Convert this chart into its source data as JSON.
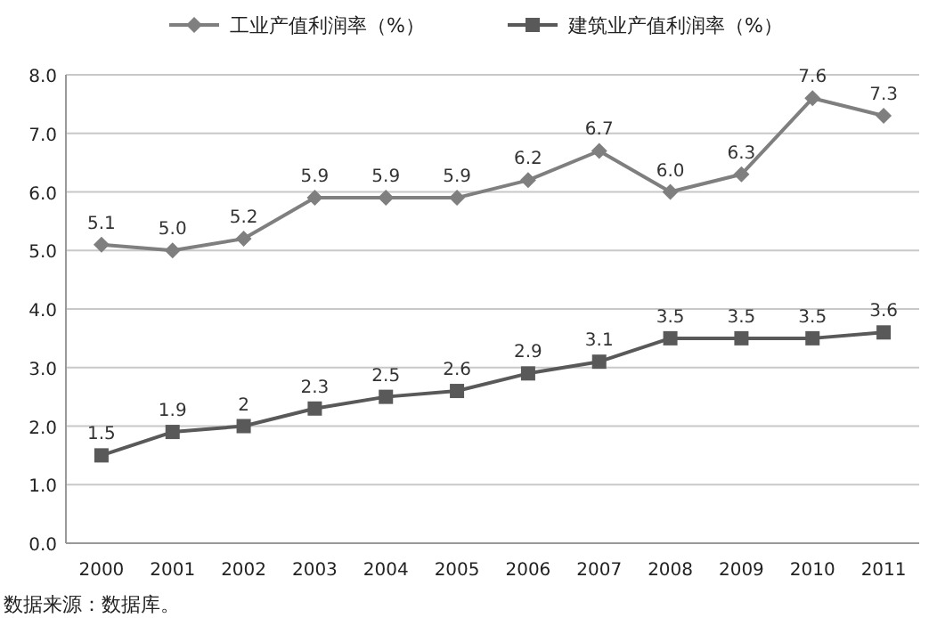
{
  "chart_data": {
    "type": "line",
    "categories": [
      "2000",
      "2001",
      "2002",
      "2003",
      "2004",
      "2005",
      "2006",
      "2007",
      "2008",
      "2009",
      "2010",
      "2011"
    ],
    "series": [
      {
        "name": "工业产值利润率（%）",
        "color": "#7f7f7f",
        "marker": "diamond",
        "values": [
          5.1,
          5.0,
          5.2,
          5.9,
          5.9,
          5.9,
          6.2,
          6.7,
          6.0,
          6.3,
          7.6,
          7.3
        ],
        "value_labels": [
          "5.1",
          "5.0",
          "5.2",
          "5.9",
          "5.9",
          "5.9",
          "6.2",
          "6.7",
          "6.0",
          "6.3",
          "7.6",
          "7.3"
        ]
      },
      {
        "name": "建筑业产值利润率（%）",
        "color": "#595959",
        "marker": "square",
        "values": [
          1.5,
          1.9,
          2,
          2.3,
          2.5,
          2.6,
          2.9,
          3.1,
          3.5,
          3.5,
          3.5,
          3.6
        ],
        "value_labels": [
          "1.5",
          "1.9",
          "2",
          "2.3",
          "2.5",
          "2.6",
          "2.9",
          "3.1",
          "3.5",
          "3.5",
          "3.5",
          "3.6"
        ]
      }
    ],
    "ylim": [
      0,
      8
    ],
    "yticks": [
      {
        "value": 0,
        "label": "0.0"
      },
      {
        "value": 1,
        "label": "1.0"
      },
      {
        "value": 2,
        "label": "2.0"
      },
      {
        "value": 3,
        "label": "3.0"
      },
      {
        "value": 4,
        "label": "4.0"
      },
      {
        "value": 5,
        "label": "5.0"
      },
      {
        "value": 6,
        "label": "6.0"
      },
      {
        "value": 7,
        "label": "7.0"
      },
      {
        "value": 8,
        "label": "8.0"
      }
    ],
    "grid": "y",
    "legend": "top",
    "line_style": "solid",
    "annotations": [
      "数据来源：数据库。"
    ]
  }
}
